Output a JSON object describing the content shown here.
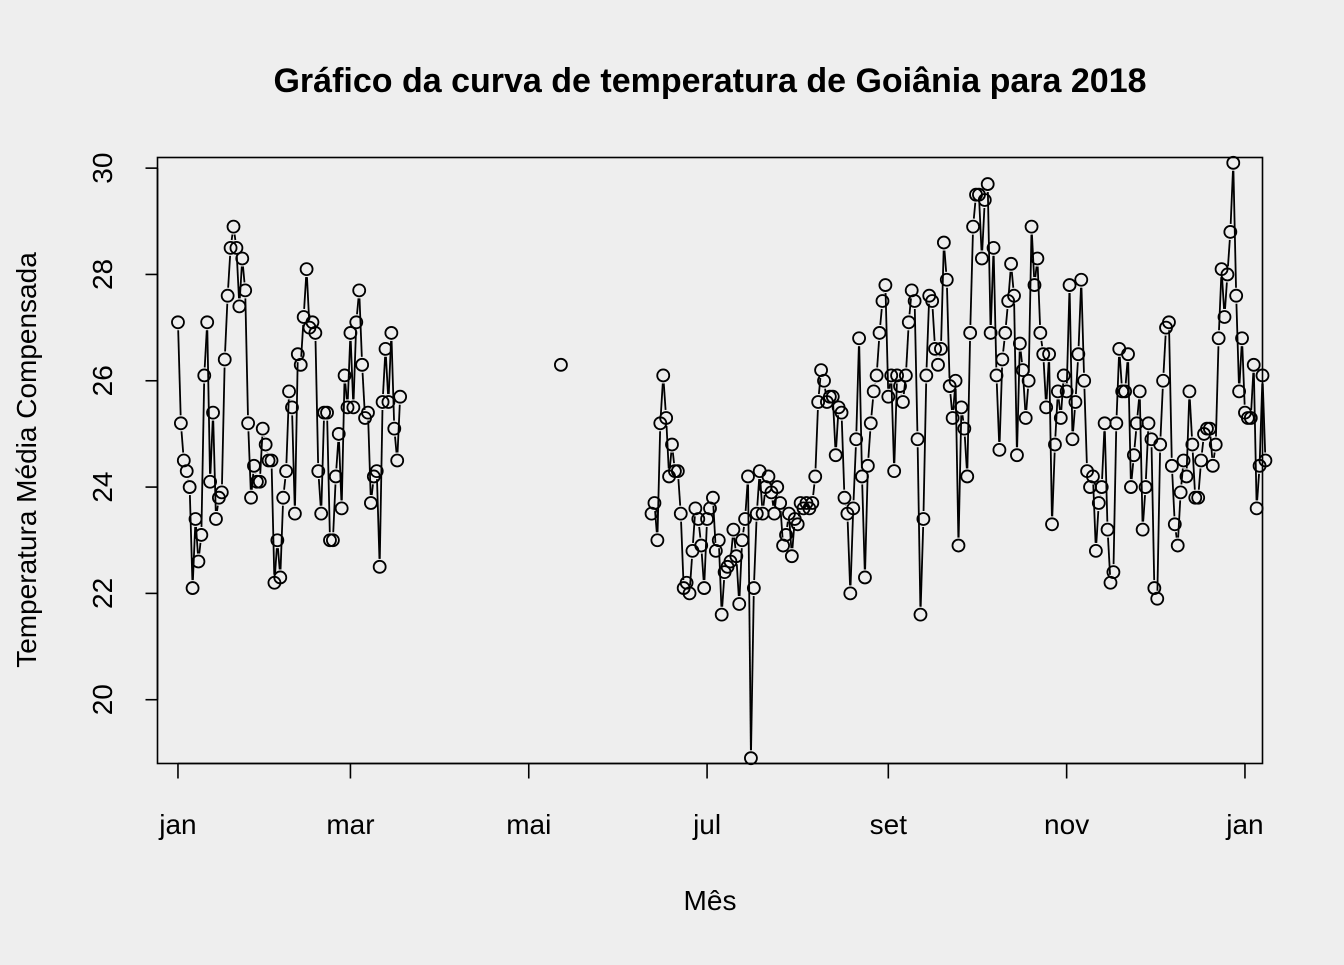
{
  "chart_data": {
    "type": "line",
    "title": "Gráfico da curva de temperatura de Goiânia para 2018",
    "xlabel": "Mês",
    "ylabel": "Temperatura Média Compensada",
    "x_axis_type": "date",
    "xlim": [
      "2017-12-25",
      "2019-01-07"
    ],
    "ylim": [
      18.8,
      30.2
    ],
    "y_ticks": [
      20,
      22,
      24,
      26,
      28,
      30
    ],
    "x_ticks": [
      {
        "date": "2018-01-01",
        "label": "jan"
      },
      {
        "date": "2018-03-01",
        "label": "mar"
      },
      {
        "date": "2018-05-01",
        "label": "mai"
      },
      {
        "date": "2018-07-01",
        "label": "jul"
      },
      {
        "date": "2018-09-01",
        "label": "set"
      },
      {
        "date": "2018-11-01",
        "label": "nov"
      },
      {
        "date": "2019-01-01",
        "label": "jan"
      }
    ],
    "style": "b",
    "marker": "open-circle",
    "grid": false,
    "legend": "none",
    "colors": {
      "background": "#eeeeee",
      "ink": "#000000"
    },
    "series": [
      {
        "start_date": "2018-01-01",
        "values": [
          27.1,
          25.2,
          24.5,
          24.3,
          24.0,
          22.1,
          23.4,
          22.6,
          23.1,
          26.1,
          27.1,
          24.1,
          25.4,
          23.4,
          23.8,
          23.9,
          26.4,
          27.6,
          28.5,
          28.9,
          28.5,
          27.4,
          28.3,
          27.7,
          25.2,
          23.8,
          24.4,
          24.1,
          24.1,
          25.1,
          24.8,
          24.5,
          24.5,
          22.2,
          23.0,
          22.3,
          23.8,
          24.3,
          25.8,
          25.5,
          23.5,
          26.5,
          26.3,
          27.2,
          28.1,
          27.0,
          27.1,
          26.9,
          24.3,
          23.5,
          25.4,
          25.4,
          23.0,
          23.0,
          24.2,
          25.0,
          23.6,
          26.1,
          25.5,
          26.9,
          25.5,
          27.1,
          27.7,
          26.3,
          25.3,
          25.4,
          23.7,
          24.2,
          24.3,
          22.5,
          25.6,
          26.6,
          25.6,
          26.9,
          25.1,
          24.5,
          25.7
        ]
      },
      {
        "start_date": "2018-05-12",
        "values": [
          26.3
        ]
      },
      {
        "start_date": "2018-06-12",
        "values": [
          23.5,
          23.7,
          23.0,
          25.2,
          26.1,
          25.3,
          24.2,
          24.8,
          24.3,
          24.3,
          23.5,
          22.1,
          22.2,
          22.0,
          22.8,
          23.6,
          23.4,
          22.9,
          22.1,
          23.4,
          23.6,
          23.8,
          22.8,
          23.0,
          21.6,
          22.4,
          22.5,
          22.6,
          23.2,
          22.7,
          21.8,
          23.0,
          23.4,
          24.2,
          18.9,
          22.1,
          23.5,
          24.3,
          23.5,
          24.0,
          24.2,
          23.9,
          23.5,
          24.0,
          23.7,
          22.9,
          23.1,
          23.5,
          22.7,
          23.4,
          23.3,
          23.7,
          23.6,
          23.7,
          23.6,
          23.7,
          24.2,
          25.6,
          26.2,
          26.0,
          25.6,
          25.7,
          25.7,
          24.6,
          25.5,
          25.4,
          23.8,
          23.5,
          22.0,
          23.6,
          24.9,
          26.8,
          24.2,
          22.3,
          24.4,
          25.2,
          25.8,
          26.1,
          26.9,
          27.5,
          27.8,
          25.7,
          26.1,
          24.3,
          26.1,
          25.9,
          25.6,
          26.1,
          27.1,
          27.7,
          27.5,
          24.9,
          21.6,
          23.4,
          26.1,
          27.6,
          27.5,
          26.6,
          26.3,
          26.6,
          28.6,
          27.9,
          25.9,
          25.3,
          26.0,
          22.9,
          25.5,
          25.1,
          24.2,
          26.9,
          28.9,
          29.5,
          29.5,
          28.3,
          29.4,
          29.7,
          26.9,
          28.5,
          26.1,
          24.7,
          26.4,
          26.9,
          27.5,
          28.2,
          27.6,
          24.6,
          26.7,
          26.2,
          25.3,
          26.0,
          28.9,
          27.8,
          28.3,
          26.9,
          26.5,
          25.5,
          26.5,
          23.3,
          24.8,
          25.8,
          25.3,
          26.1,
          25.8,
          27.8,
          24.9,
          25.6,
          26.5,
          27.9,
          26.0,
          24.3,
          24.0,
          24.2,
          22.8,
          23.7,
          24.0,
          25.2,
          23.2,
          22.2,
          22.4,
          25.2,
          26.6,
          25.8,
          25.8,
          26.5,
          24.0,
          24.6,
          25.2,
          25.8,
          23.2,
          24.0,
          25.2,
          24.9,
          22.1,
          21.9,
          24.8,
          26.0,
          27.0,
          27.1,
          24.4,
          23.3,
          22.9,
          23.9,
          24.5,
          24.2,
          25.8,
          24.8,
          23.8,
          23.8,
          24.5,
          25.0,
          25.1,
          25.1,
          24.4,
          24.8,
          26.8,
          28.1,
          27.2,
          28.0,
          28.8,
          30.1,
          27.6,
          25.8,
          26.8,
          25.4,
          25.3,
          25.3,
          26.3,
          23.6,
          24.4,
          26.1,
          24.5
        ]
      }
    ]
  }
}
